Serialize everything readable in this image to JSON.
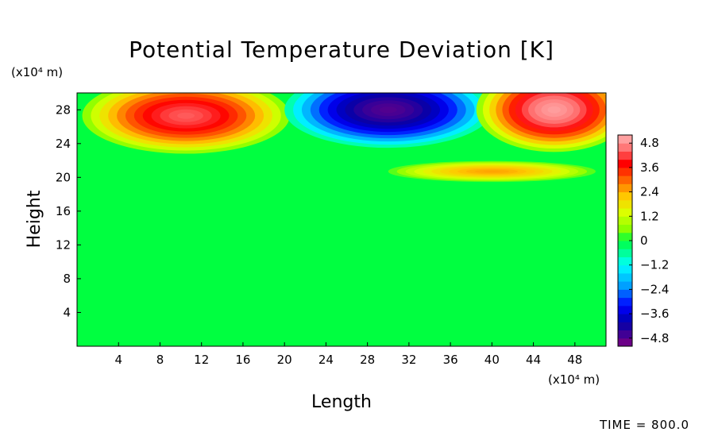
{
  "chart_data": {
    "type": "heatmap",
    "title": "Potential Temperature Deviation [K]",
    "xlabel": "Length",
    "ylabel": "Height",
    "x_unit": "(x10⁴ m)",
    "y_unit": "(x10⁴ m)",
    "x_range": [
      0,
      51
    ],
    "y_range": [
      0,
      30
    ],
    "x_ticks": [
      4,
      8,
      12,
      16,
      20,
      24,
      28,
      32,
      36,
      40,
      44,
      48
    ],
    "y_ticks": [
      4,
      8,
      12,
      16,
      20,
      24,
      28
    ],
    "grid": false,
    "colorbar": {
      "position": "right",
      "range": [
        -5.2,
        5.2
      ],
      "tick_labels": [
        "4.8",
        "3.6",
        "2.4",
        "1.2",
        "0",
        "−1.2",
        "−2.4",
        "−3.6",
        "−4.8"
      ],
      "tick_values": [
        4.8,
        3.6,
        2.4,
        1.2,
        0,
        -1.2,
        -2.4,
        -3.6,
        -4.8
      ]
    },
    "features": [
      {
        "kind": "warm",
        "center_x": 10.5,
        "center_y": 27.3,
        "peak": 4.4,
        "extent_x": [
          1,
          21
        ],
        "extent_y": [
          21,
          30
        ]
      },
      {
        "kind": "cold",
        "center_x": 30,
        "center_y": 28,
        "peak": -4.8,
        "extent_x": [
          22,
          42
        ],
        "extent_y": [
          21,
          30
        ]
      },
      {
        "kind": "warm",
        "center_x": 46,
        "center_y": 28,
        "peak": 5.0,
        "extent_x": [
          36,
          51
        ],
        "extent_y": [
          20,
          30
        ]
      },
      {
        "kind": "warm",
        "center_x": 40,
        "center_y": 20.7,
        "peak": 2.5,
        "extent_x": [
          31,
          51
        ],
        "extent_y": [
          19.5,
          22
        ]
      }
    ],
    "background_value": 0
  },
  "footer": {
    "time_label": "TIME = 800.0"
  }
}
